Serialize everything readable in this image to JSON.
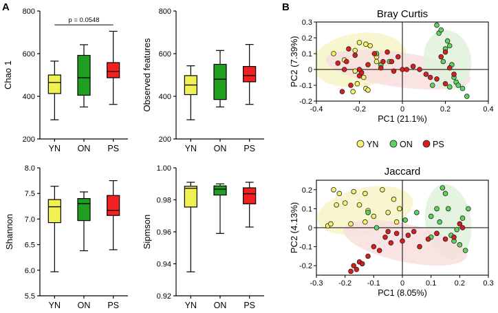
{
  "panels": {
    "a": "A",
    "b": "B"
  },
  "colors": {
    "YN": "#f0f050",
    "ON": "#1f9e1f",
    "PS": "#f22020",
    "YN_point": "#f5f06e",
    "ON_point": "#5fd35f",
    "PS_point": "#d91e1e",
    "ellipse_YN": "#f7f4c6",
    "ellipse_ON": "#dff2dc",
    "ellipse_PS": "#f8dede"
  },
  "chart_data": [
    {
      "id": "chao1",
      "type": "box",
      "title": "",
      "xlabel": "",
      "ylabel": "Chao 1",
      "categories": [
        "YN",
        "ON",
        "PS"
      ],
      "ylim": [
        200,
        800
      ],
      "yticks": [
        200,
        400,
        600,
        800
      ],
      "ytick_labels": [
        "200",
        "400",
        "600",
        "800"
      ],
      "annotation": {
        "text": "p = 0.0548",
        "from": "YN",
        "to": "PS",
        "y": 735
      },
      "boxes": [
        {
          "min": 290,
          "q1": 413,
          "median": 465,
          "q3": 500,
          "max": 565
        },
        {
          "min": 350,
          "q1": 405,
          "median": 487,
          "q3": 592,
          "max": 642
        },
        {
          "min": 362,
          "q1": 487,
          "median": 517,
          "q3": 558,
          "max": 705
        }
      ]
    },
    {
      "id": "observed",
      "type": "box",
      "title": "",
      "xlabel": "",
      "ylabel": "Observed features",
      "categories": [
        "YN",
        "ON",
        "PS"
      ],
      "ylim": [
        200,
        800
      ],
      "yticks": [
        200,
        400,
        600,
        800
      ],
      "ytick_labels": [
        "200",
        "400",
        "600",
        "800"
      ],
      "boxes": [
        {
          "min": 290,
          "q1": 408,
          "median": 453,
          "q3": 497,
          "max": 543
        },
        {
          "min": 350,
          "q1": 385,
          "median": 480,
          "q3": 550,
          "max": 615
        },
        {
          "min": 362,
          "q1": 468,
          "median": 497,
          "q3": 540,
          "max": 643
        }
      ]
    },
    {
      "id": "shannon",
      "type": "box",
      "title": "",
      "xlabel": "",
      "ylabel": "Shannon",
      "categories": [
        "YN",
        "ON",
        "PS"
      ],
      "ylim": [
        5.5,
        8.0
      ],
      "yticks": [
        5.5,
        6.0,
        6.5,
        7.0,
        7.5,
        8.0
      ],
      "ytick_labels": [
        "5.5",
        "6.0",
        "6.5",
        "7.0",
        "7.5",
        "8.0"
      ],
      "boxes": [
        {
          "min": 5.97,
          "q1": 6.93,
          "median": 7.24,
          "q3": 7.38,
          "max": 7.64
        },
        {
          "min": 6.38,
          "q1": 6.97,
          "median": 7.3,
          "q3": 7.4,
          "max": 7.53
        },
        {
          "min": 6.4,
          "q1": 7.07,
          "median": 7.17,
          "q3": 7.46,
          "max": 7.75
        }
      ]
    },
    {
      "id": "simpson",
      "type": "box",
      "title": "",
      "xlabel": "",
      "ylabel": "Sipmson",
      "categories": [
        "YN",
        "ON",
        "PS"
      ],
      "ylim": [
        0.92,
        1.0
      ],
      "yticks": [
        0.92,
        0.94,
        0.96,
        0.98,
        1.0
      ],
      "ytick_labels": [
        "0.92",
        "0.94",
        "0.96",
        "0.98",
        "1.00"
      ],
      "boxes": [
        {
          "min": 0.935,
          "q1": 0.9755,
          "median": 0.9872,
          "q3": 0.9885,
          "max": 0.991
        },
        {
          "min": 0.959,
          "q1": 0.983,
          "median": 0.9867,
          "q3": 0.9887,
          "max": 0.99
        },
        {
          "min": 0.963,
          "q1": 0.9775,
          "median": 0.9838,
          "q3": 0.9875,
          "max": 0.991
        }
      ]
    },
    {
      "id": "bray",
      "type": "scatter",
      "title": "Bray Curtis",
      "xlabel": "PC1 (21.1%)",
      "ylabel": "PC2 (7.39%)",
      "xlim": [
        -0.4,
        0.4
      ],
      "ylim": [
        -0.2,
        0.3
      ],
      "xticks": [
        -0.4,
        -0.2,
        0,
        0.2,
        0.4
      ],
      "xtick_labels": [
        "-0.4",
        "-0.2",
        "0",
        "0.2",
        "0.4"
      ],
      "yticks": [
        -0.2,
        -0.1,
        0,
        0.1,
        0.2,
        0.3
      ],
      "ytick_labels": [
        "-0.2",
        "-0.1",
        "0",
        "0.1",
        "0.2",
        "0.3"
      ],
      "ellipses": [
        {
          "group": "YN",
          "cx": -0.2,
          "cy": 0.06,
          "rx": 0.22,
          "ry": 0.17,
          "angle": -8
        },
        {
          "group": "PS",
          "cx": -0.02,
          "cy": 0.0,
          "rx": 0.34,
          "ry": 0.11,
          "angle": 8
        },
        {
          "group": "ON",
          "cx": 0.21,
          "cy": 0.06,
          "rx": 0.11,
          "ry": 0.19,
          "angle": -10
        }
      ],
      "series": [
        {
          "name": "YN",
          "x": [
            -0.32,
            -0.27,
            -0.22,
            -0.2,
            -0.17,
            -0.15,
            -0.12,
            -0.22,
            -0.18,
            -0.17,
            -0.23,
            -0.21,
            -0.16,
            -0.12
          ],
          "y": [
            0.1,
            0.06,
            0.12,
            0.17,
            0.16,
            0.15,
            0.08,
            -0.01,
            -0.05,
            -0.12,
            -0.14,
            -0.09,
            -0.13,
            0.05
          ]
        },
        {
          "name": "ON",
          "x": [
            -0.12,
            -0.1,
            -0.06,
            0.16,
            0.17,
            0.18,
            0.2,
            0.21,
            0.22,
            0.23,
            0.25,
            0.26,
            0.28,
            0.3,
            0.14,
            0.19,
            0.22,
            0.24
          ],
          "y": [
            0.1,
            0.03,
            0.05,
            0.28,
            0.23,
            0.25,
            0.13,
            0.18,
            0.15,
            0.03,
            -0.08,
            -0.1,
            -0.12,
            -0.17,
            -0.1,
            0.05,
            -0.11,
            -0.05
          ]
        },
        {
          "name": "PS",
          "x": [
            -0.3,
            -0.27,
            -0.26,
            -0.25,
            -0.24,
            -0.22,
            -0.2,
            -0.19,
            -0.16,
            -0.13,
            -0.1,
            -0.07,
            -0.05,
            -0.02,
            0.0,
            0.02,
            0.05,
            0.08,
            0.11,
            0.13,
            0.16,
            0.18,
            0.2,
            0.22,
            0.24,
            0.2,
            -0.04,
            -0.09,
            -0.2,
            -0.28
          ],
          "y": [
            0.04,
            0.0,
            0.05,
            0.13,
            -0.1,
            0.09,
            -0.04,
            -0.02,
            0.03,
            0.1,
            0.01,
            0.11,
            0.05,
            0.08,
            0.0,
            0.0,
            0.02,
            0.0,
            -0.03,
            -0.05,
            -0.06,
            0.08,
            -0.09,
            0.01,
            -0.03,
            0.11,
            -0.01,
            0.05,
            0.0,
            -0.14
          ]
        }
      ],
      "legend": [
        {
          "label": "YN",
          "group": "YN"
        },
        {
          "label": "ON",
          "group": "ON"
        },
        {
          "label": "PS",
          "group": "PS"
        }
      ]
    },
    {
      "id": "jaccard",
      "type": "scatter",
      "title": "Jaccard",
      "xlabel": "PC1 (8.05%)",
      "ylabel": "PC2 (4.13%)",
      "xlim": [
        -0.3,
        0.3
      ],
      "ylim": [
        -0.25,
        0.25
      ],
      "xticks": [
        -0.3,
        -0.2,
        -0.1,
        0,
        0.1,
        0.2,
        0.3
      ],
      "xtick_labels": [
        "-0.3",
        "-0.2",
        "-0.1",
        "0",
        "0.1",
        "0.2",
        "0.3"
      ],
      "yticks": [
        -0.2,
        -0.1,
        0,
        0.1,
        0.2
      ],
      "ytick_labels": [
        "-0.2",
        "-0.1",
        "0",
        "0.1",
        "0.2"
      ],
      "ellipses": [
        {
          "group": "YN",
          "cx": -0.13,
          "cy": 0.09,
          "rx": 0.17,
          "ry": 0.12,
          "angle": -12
        },
        {
          "group": "ON",
          "cx": 0.16,
          "cy": 0.03,
          "rx": 0.08,
          "ry": 0.2,
          "angle": -8
        },
        {
          "group": "PS",
          "cx": 0.01,
          "cy": -0.08,
          "rx": 0.22,
          "ry": 0.1,
          "angle": 12
        }
      ],
      "series": [
        {
          "name": "YN",
          "x": [
            -0.26,
            -0.25,
            -0.23,
            -0.22,
            -0.2,
            -0.18,
            -0.17,
            -0.15,
            -0.13,
            -0.12,
            -0.1,
            -0.07,
            -0.05,
            -0.03,
            -0.01,
            -0.02,
            -0.13,
            -0.24
          ],
          "y": [
            0.01,
            0.02,
            0.12,
            0.18,
            0.13,
            0.02,
            0.19,
            0.12,
            0.18,
            0.09,
            0.06,
            0.2,
            0.08,
            0.15,
            0.1,
            0.03,
            0.03,
            0.2
          ]
        },
        {
          "name": "ON",
          "x": [
            -0.12,
            -0.09,
            0.01,
            0.05,
            0.1,
            0.12,
            0.13,
            0.14,
            0.15,
            0.16,
            0.17,
            0.18,
            0.19,
            0.2,
            0.21,
            0.22,
            0.23,
            0.12,
            0.1
          ],
          "y": [
            0.08,
            0.0,
            0.04,
            0.08,
            0.06,
            0.1,
            0.03,
            0.21,
            0.18,
            0.1,
            -0.04,
            -0.07,
            -0.01,
            -0.09,
            0.05,
            -0.12,
            0.1,
            -0.03,
            -0.05
          ]
        },
        {
          "name": "PS",
          "x": [
            -0.17,
            -0.16,
            -0.15,
            -0.14,
            -0.12,
            -0.1,
            -0.08,
            -0.06,
            -0.04,
            -0.02,
            0.0,
            0.02,
            0.04,
            0.06,
            0.09,
            0.12,
            0.15,
            0.18,
            0.2,
            0.21,
            -0.05,
            -0.18
          ],
          "y": [
            -0.2,
            -0.22,
            -0.18,
            -0.19,
            -0.15,
            -0.1,
            -0.12,
            -0.05,
            -0.08,
            -0.03,
            -0.07,
            -0.04,
            -0.02,
            -0.1,
            -0.06,
            -0.03,
            -0.06,
            -0.05,
            0.02,
            0.0,
            -0.02,
            -0.23
          ]
        }
      ]
    }
  ]
}
